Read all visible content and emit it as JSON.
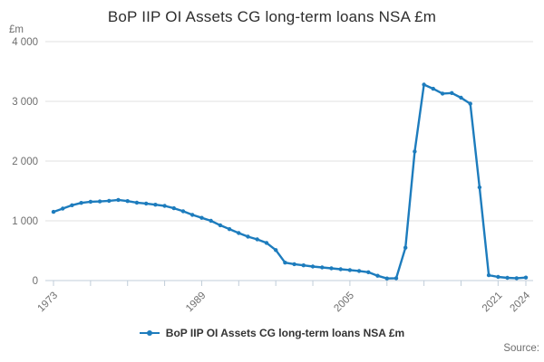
{
  "header": {
    "title": "BoP IIP OI Assets CG long-term loans NSA £m"
  },
  "legend": {
    "label": "BoP IIP OI Assets CG long-term loans NSA £m",
    "marker": "line-with-dot-icon"
  },
  "footer": {
    "source_label": "Source:"
  },
  "colors": {
    "line": "#1d7cbd",
    "gridline": "#e1e1e1",
    "axis": "#c0cdd9",
    "tick_text": "#6e6e6e",
    "title_text": "#2e2e2e",
    "legend_text": "#333333"
  },
  "chart_data": {
    "type": "line",
    "title": "BoP IIP OI Assets CG long-term loans NSA £m",
    "ylabel": "£m",
    "xlabel": "",
    "ylim": [
      0,
      4000
    ],
    "xlim": [
      1973,
      2024
    ],
    "grid": "horizontal",
    "legend_position": "bottom-center",
    "marker": "dot",
    "y_tick_values": [
      0,
      1000,
      2000,
      3000,
      4000
    ],
    "y_tick_labels": [
      "0",
      "1 000",
      "2 000",
      "3 000",
      "4 000"
    ],
    "x_tick_years": [
      1973,
      1977,
      1981,
      1985,
      1989,
      1993,
      1997,
      2001,
      2005,
      2009,
      2013,
      2017,
      2021,
      2024
    ],
    "x_label_years": [
      1973,
      1989,
      2005,
      2021,
      2024
    ],
    "x": [
      1973,
      1974,
      1975,
      1976,
      1977,
      1978,
      1979,
      1980,
      1981,
      1982,
      1983,
      1984,
      1985,
      1986,
      1987,
      1988,
      1989,
      1990,
      1991,
      1992,
      1993,
      1994,
      1995,
      1996,
      1997,
      1998,
      1999,
      2000,
      2001,
      2002,
      2003,
      2004,
      2005,
      2006,
      2007,
      2008,
      2009,
      2010,
      2011,
      2012,
      2013,
      2014,
      2015,
      2016,
      2017,
      2018,
      2019,
      2020,
      2021,
      2022,
      2023,
      2024
    ],
    "series": [
      {
        "name": "BoP IIP OI Assets CG long-term loans NSA £m",
        "values": [
          1150,
          1205,
          1260,
          1300,
          1320,
          1325,
          1335,
          1350,
          1330,
          1305,
          1290,
          1270,
          1250,
          1210,
          1160,
          1100,
          1050,
          1000,
          925,
          860,
          795,
          735,
          690,
          630,
          510,
          300,
          275,
          255,
          235,
          220,
          205,
          190,
          175,
          160,
          140,
          80,
          35,
          40,
          550,
          2160,
          3280,
          3210,
          3130,
          3140,
          3060,
          2960,
          1560,
          90,
          60,
          45,
          40,
          50
        ]
      }
    ]
  }
}
